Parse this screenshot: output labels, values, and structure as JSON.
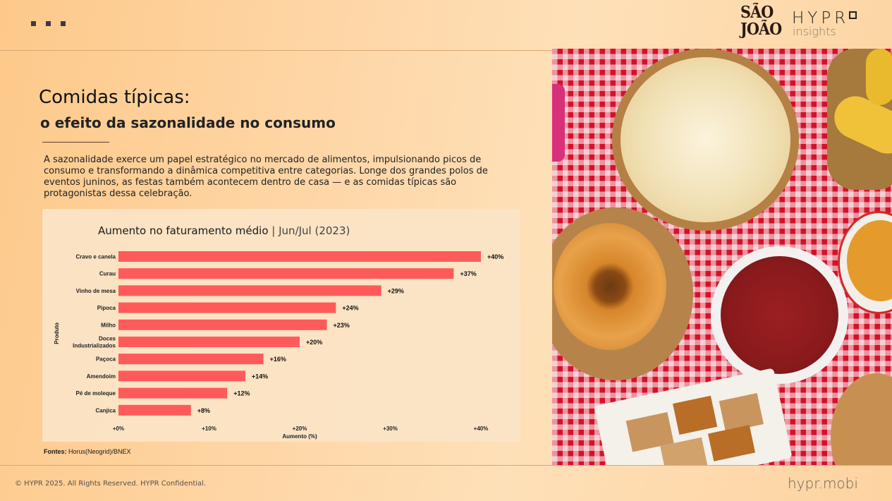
{
  "header": {
    "menu_icon": "more-dots-icon",
    "logo_event_line1": "SÃO",
    "logo_event_line2": "JOÃO",
    "logo_brand": "HYPR",
    "logo_brand_sub": "insights"
  },
  "content": {
    "title": "Comidas típicas:",
    "subtitle": "o efeito da sazonalidade no consumo",
    "intro": "A sazonalidade exerce um papel estratégico no mercado de alimentos, impulsionando picos de consumo e transformando a dinâmica competitiva entre categorias. Longe dos grandes polos de eventos juninos, as festas também acontecem dentro de casa — e as comidas típicas são protagonistas dessa celebração.",
    "sources_label": "Fontes:",
    "sources_value": "Horus(Neogrid)/BNEX"
  },
  "chart_data": {
    "type": "bar",
    "orientation": "horizontal",
    "title": "Aumento no faturamento médio",
    "title_separator": "|",
    "title_period": "Jun/Jul (2023)",
    "xlabel": "Aumento (%)",
    "ylabel": "Produto",
    "xlim": [
      0,
      40
    ],
    "xticks": [
      0,
      10,
      20,
      30,
      40
    ],
    "xtick_labels": [
      "+0%",
      "+10%",
      "+20%",
      "+30%",
      "+40%"
    ],
    "grid": false,
    "bar_color": "#ff5a5a",
    "categories": [
      "Cravo e canela",
      "Curau",
      "Vinho de mesa",
      "Pipoca",
      "Milho",
      "Doces industrializados",
      "Paçoca",
      "Amendoim",
      "Pé de moleque",
      "Canjica"
    ],
    "category_lines": [
      [
        "Cravo e canela"
      ],
      [
        "Curau"
      ],
      [
        "Vinho de mesa"
      ],
      [
        "Pipoca"
      ],
      [
        "Milho"
      ],
      [
        "Doces",
        "Industrializados"
      ],
      [
        "Paçoca"
      ],
      [
        "Amendoim"
      ],
      [
        "Pé de moleque"
      ],
      [
        "Canjica"
      ]
    ],
    "values": [
      40,
      37,
      29,
      24,
      23,
      20,
      16,
      14,
      12,
      8
    ],
    "value_labels": [
      "+40%",
      "+37%",
      "+29%",
      "+24%",
      "+23%",
      "+20%",
      "+16%",
      "+14%",
      "+12%",
      "+8%"
    ]
  },
  "photo": {
    "description": "Festa junina foods on red gingham tablecloth: popcorn, corn cob, bolo de fubá, peanuts, corn kernels, paçoca"
  },
  "footer": {
    "copyright": "© HYPR 2025. All Rights Reserved. HYPR Confidential.",
    "site": "hypr.mobi"
  }
}
